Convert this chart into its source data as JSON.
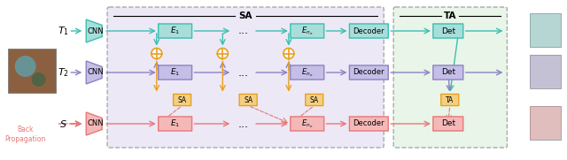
{
  "fig_width": 6.4,
  "fig_height": 1.81,
  "dpi": 100,
  "bg_color": "#ffffff",
  "teal_color": "#3bbfb2",
  "teal_box_color": "#5ec8c2",
  "teal_fill": "#a8deda",
  "purple_color": "#8e82c3",
  "purple_fill": "#c5bfe8",
  "pink_color": "#e87878",
  "pink_fill": "#f5b8b8",
  "orange_color": "#e8a020",
  "orange_fill": "#f5cf80",
  "sa_bg": "#ede8f5",
  "ta_bg": "#e8f5e8",
  "title_sa": "SA",
  "title_ta": "TA",
  "label_T1": "T_1",
  "label_T2": "T_2",
  "label_S": "S",
  "label_back": "Back\nPropagation",
  "label_cnn": "CNN",
  "label_E1": "E_1",
  "label_En": "E_{n_e}",
  "label_decoder": "Decoder",
  "label_det": "Det",
  "label_sa": "SA",
  "label_ta": "TA",
  "dots": "..."
}
